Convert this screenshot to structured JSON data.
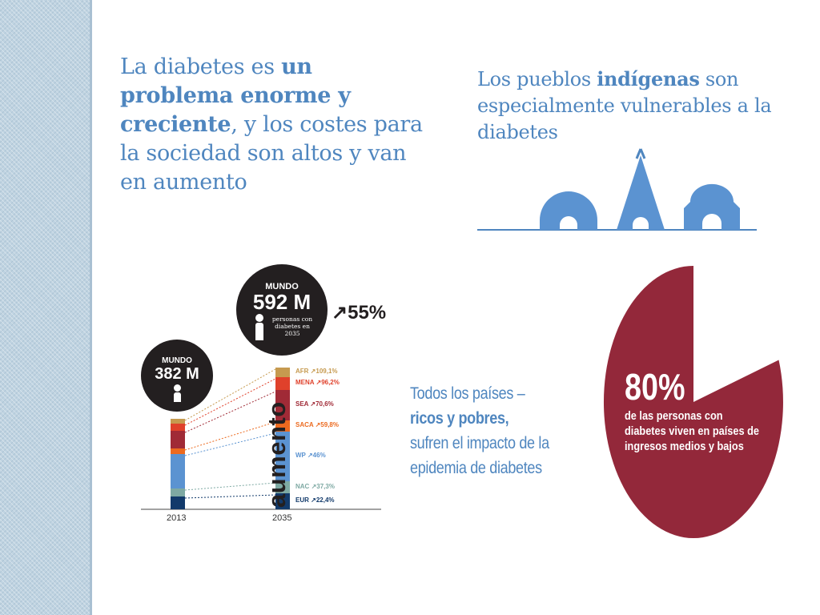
{
  "headline": {
    "p1": "La diabetes es ",
    "b1": "un problema enorme y creciente",
    "p2": ", y los costes para la sociedad son altos y van en aumento"
  },
  "indigenous": {
    "p1": "Los pueblos ",
    "b1": "indígenas",
    "p2": " son especialmente vulnerables a la diabetes"
  },
  "chart": {
    "bubble_2013": {
      "label": "MUNDO",
      "value": "382 M"
    },
    "bubble_2035": {
      "label": "MUNDO",
      "value": "592 M",
      "caption": "personas con diabetes en 2035"
    },
    "increase": "55%",
    "aumento": "aumento",
    "years": [
      "2013",
      "2035"
    ],
    "regions": [
      {
        "name": "AFR",
        "change": "109,1%",
        "color": "#c69a4f"
      },
      {
        "name": "MENA",
        "change": "96,2%",
        "color": "#e0412b"
      },
      {
        "name": "SEA",
        "change": "70,6%",
        "color": "#a02a36"
      },
      {
        "name": "SACA",
        "change": "59,8%",
        "color": "#ec6a1f"
      },
      {
        "name": "WP",
        "change": "46%",
        "color": "#5b93d1"
      },
      {
        "name": "NAC",
        "change": "37,3%",
        "color": "#7ea9a3"
      },
      {
        "name": "EUR",
        "change": "22,4%",
        "color": "#123a6b"
      }
    ]
  },
  "todos": {
    "p1": "Todos los países –",
    "b1": "ricos y pobres,",
    "p2": "sufren el impacto de la epidemia de diabetes"
  },
  "pie": {
    "big": "80%",
    "small": "de las personas con diabetes viven en países de ingresos medios y bajos",
    "color": "#93283a",
    "percent": 80
  }
}
